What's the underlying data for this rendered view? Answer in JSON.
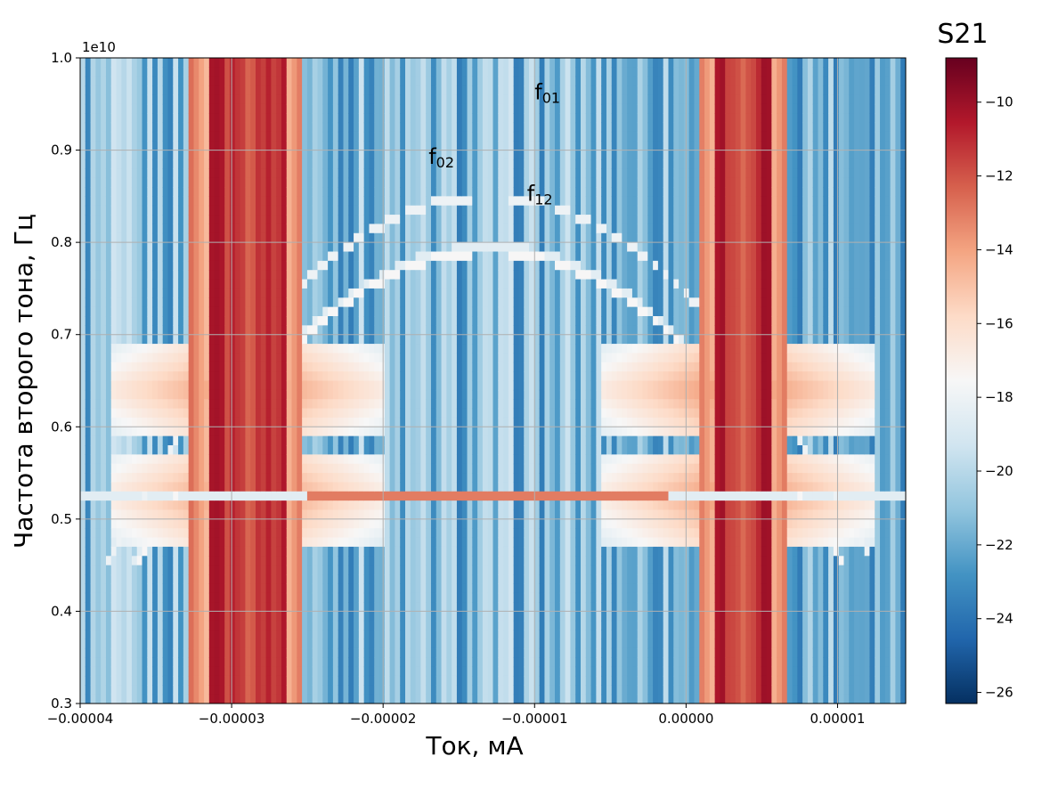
{
  "chart_data": {
    "type": "heatmap",
    "xlabel": "Ток, мА",
    "ylabel": "Частота второго тона, Гц",
    "offset_label": "1e10",
    "xlim": [
      -4e-05,
      1.45e-05
    ],
    "ylim": [
      0.3,
      1.0
    ],
    "x_ticks": [
      -4e-05,
      -3e-05,
      -2e-05,
      -1e-05,
      0.0,
      1e-05
    ],
    "x_tick_labels": [
      "−0.00004",
      "−0.00003",
      "−0.00002",
      "−0.00001",
      "0.00000",
      "0.00001"
    ],
    "y_ticks": [
      0.3,
      0.4,
      0.5,
      0.6,
      0.7,
      0.8,
      0.9,
      1.0
    ],
    "y_tick_labels": [
      "0.3",
      "0.4",
      "0.5",
      "0.6",
      "0.7",
      "0.8",
      "0.9",
      "1.0"
    ],
    "grid": true,
    "colormap": "RdBu_r",
    "colorbar": {
      "title": "S21",
      "range": [
        -26.3,
        -8.8
      ],
      "ticks": [
        -10,
        -12,
        -14,
        -16,
        -18,
        -20,
        -22,
        -24,
        -26
      ],
      "tick_labels": [
        "−10",
        "−12",
        "−14",
        "−16",
        "−18",
        "−20",
        "−22",
        "−24",
        "−26"
      ]
    },
    "features": {
      "resonance_bands_x": [
        [
          -3.15e-05,
          -2.65e-05
        ],
        [
          2e-06,
          5.5e-06
        ]
      ],
      "symmetry_center_x": -1.3e-05,
      "horizontal_lines_y": [
        0.64,
        0.525
      ],
      "transition_f01_peak_y": 0.85,
      "transition_f02_peak_y": 0.795,
      "transition_f12_peak_y": 0.79
    },
    "annotations": [
      {
        "text": "f",
        "sub": "01",
        "x": -1e-05,
        "y": 0.955
      },
      {
        "text": "f",
        "sub": "02",
        "x": -1.7e-05,
        "y": 0.885
      },
      {
        "text": "f",
        "sub": "12",
        "x": -1.05e-05,
        "y": 0.845
      }
    ]
  }
}
